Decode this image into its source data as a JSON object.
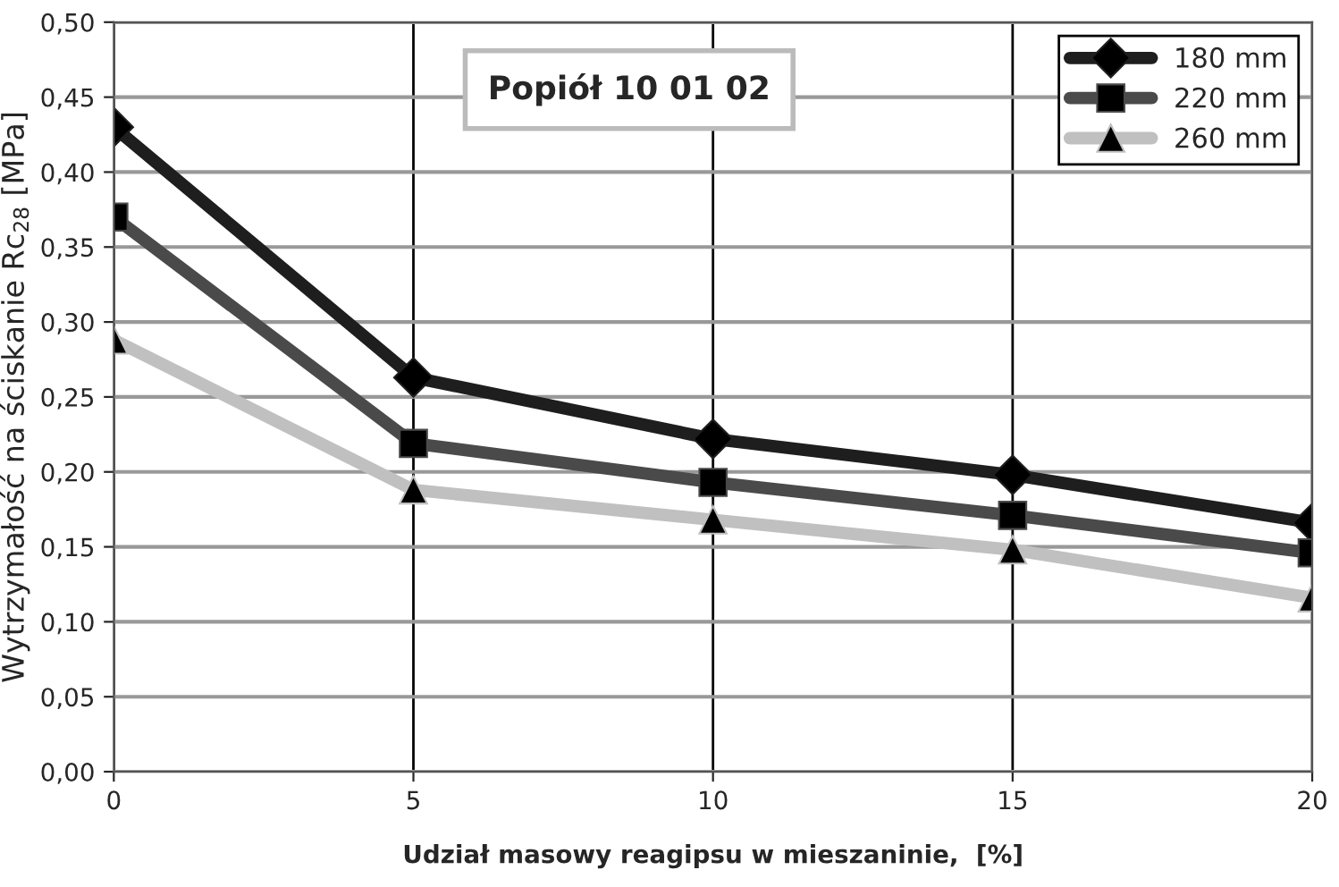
{
  "chart_data": {
    "type": "line",
    "title": "Popiół 10 01 02",
    "xlabel": "Udział masowy reagipsu w mieszaninie,  [%]",
    "ylabel": "Wytrzymałość na ściskanie Rc$_{28}$ [MPa]",
    "x": [
      0,
      5,
      10,
      15,
      20
    ],
    "series": [
      {
        "name": "180 mm",
        "color": "#1e1e1e",
        "marker": "diamond",
        "values": [
          0.43,
          0.263,
          0.222,
          0.198,
          0.166
        ]
      },
      {
        "name": "220 mm",
        "color": "#4a4a4a",
        "marker": "square",
        "values": [
          0.37,
          0.219,
          0.193,
          0.171,
          0.146
        ]
      },
      {
        "name": "260 mm",
        "color": "#c0c0c0",
        "marker": "triangle",
        "values": [
          0.288,
          0.188,
          0.168,
          0.148,
          0.116
        ]
      }
    ],
    "xlim": [
      0,
      20
    ],
    "xticks": [
      0,
      5,
      10,
      15,
      20
    ],
    "ylim": [
      0,
      0.5
    ],
    "yticks": [
      {
        "value": 0,
        "label": "0,00"
      },
      {
        "value": 0.05,
        "label": "0,05"
      },
      {
        "value": 0.1,
        "label": "0,10"
      },
      {
        "value": 0.15,
        "label": "0,15"
      },
      {
        "value": 0.2,
        "label": "0,20"
      },
      {
        "value": 0.25,
        "label": "0,25"
      },
      {
        "value": 0.3,
        "label": "0,30"
      },
      {
        "value": 0.35,
        "label": "0,35"
      },
      {
        "value": 0.4,
        "label": "0,40"
      },
      {
        "value": 0.45,
        "label": "0,45"
      },
      {
        "value": 0.5,
        "label": "0,50"
      }
    ],
    "grid": true,
    "legend": "top right",
    "line_style": "solid"
  }
}
